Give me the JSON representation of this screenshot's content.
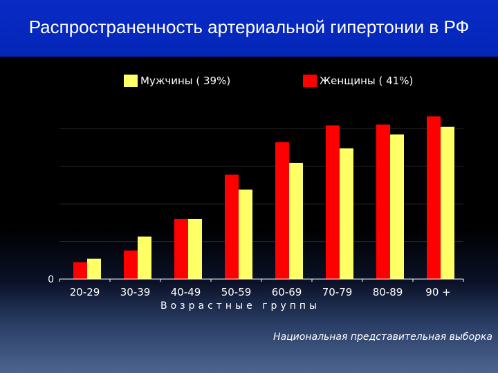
{
  "slide": {
    "title": "Распространенность артериальной гипертонии в РФ",
    "footnote": "Национальная представительная выборка"
  },
  "legend": {
    "men": "Мужчины ( 39%)",
    "women": "Женщины ( 41%)"
  },
  "colors": {
    "men": "#ffff66",
    "women": "#ff0000",
    "title_bar": "#0326b8"
  },
  "chart_data": {
    "type": "bar",
    "title": "Распространенность артериальной гипертонии в РФ",
    "xlabel": "Возрастные группы",
    "ylabel": "",
    "categories": [
      "20-29",
      "30-39",
      "40-49",
      "50-59",
      "60-69",
      "70-79",
      "80-89",
      "90 +"
    ],
    "series": [
      {
        "name": "Женщины ( 41%)",
        "values": [
          4.5,
          7.6,
          16.0,
          27.8,
          36.4,
          40.9,
          41.1,
          43.3
        ]
      },
      {
        "name": "Мужчины ( 39%)",
        "values": [
          5.4,
          11.3,
          16.0,
          23.8,
          30.9,
          34.8,
          38.5,
          40.5
        ]
      }
    ],
    "ytick_labels": [
      "0"
    ],
    "ylim": [
      0,
      50
    ],
    "grid": true,
    "legend_position": "top"
  }
}
